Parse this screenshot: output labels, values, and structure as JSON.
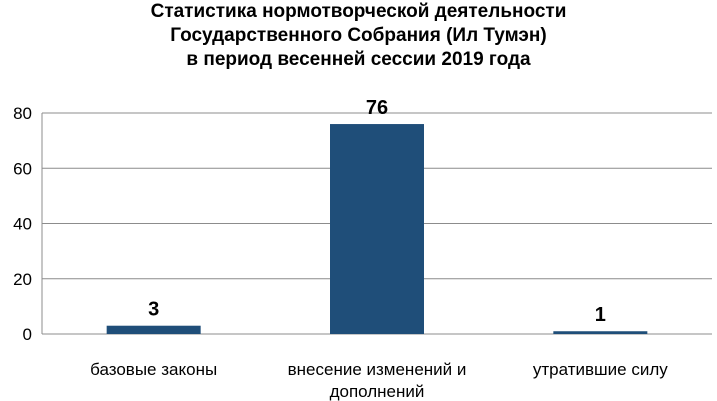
{
  "chart_data": {
    "type": "bar",
    "title_lines": [
      "Статистика нормотворческой деятельности",
      "Государственного Собрания (Ил Тумэн)",
      "в период весенней сессии 2019 года"
    ],
    "categories": [
      [
        "базовые законы"
      ],
      [
        "внесение изменений и",
        "дополнений"
      ],
      [
        "утратившие силу"
      ]
    ],
    "values": [
      3,
      76,
      1
    ],
    "data_labels": [
      "3",
      "76",
      "1"
    ],
    "y_ticks": [
      "0",
      "20",
      "40",
      "60",
      "80"
    ],
    "ylim": [
      0,
      80
    ],
    "xlabel": "",
    "ylabel": "",
    "grid": true,
    "legend": "none",
    "bar_color": "#1F4E79",
    "grid_color": "#8C8C8C"
  }
}
